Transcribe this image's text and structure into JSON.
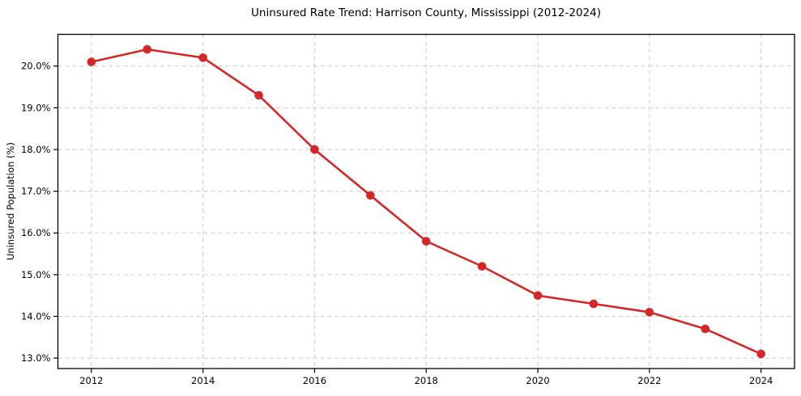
{
  "chart_data": {
    "type": "line",
    "title": "Uninsured Rate Trend: Harrison County, Mississippi (2012-2024)",
    "xlabel": "",
    "ylabel": "Uninsured Population (%)",
    "x": [
      2012,
      2013,
      2014,
      2015,
      2016,
      2017,
      2018,
      2019,
      2020,
      2021,
      2022,
      2023,
      2024
    ],
    "series": [
      {
        "name": "Uninsured rate",
        "values": [
          20.1,
          20.4,
          20.2,
          19.3,
          18.0,
          16.9,
          15.8,
          15.2,
          14.5,
          14.3,
          14.1,
          13.7,
          13.1
        ]
      }
    ],
    "xlim": [
      2011.4,
      2024.6
    ],
    "ylim": [
      12.75,
      20.76
    ],
    "xticks": {
      "values": [
        2012,
        2014,
        2016,
        2018,
        2020,
        2022,
        2024
      ],
      "labels": [
        "2012",
        "2014",
        "2016",
        "2018",
        "2020",
        "2022",
        "2024"
      ]
    },
    "yticks": {
      "values": [
        13,
        14,
        15,
        16,
        17,
        18,
        19,
        20
      ],
      "labels": [
        "13.0%",
        "14.0%",
        "15.0%",
        "16.0%",
        "17.0%",
        "18.0%",
        "19.0%",
        "20.0%"
      ]
    },
    "grid": true,
    "grid_style": "dashed",
    "legend": "none",
    "colors": {
      "line": "#d62728",
      "marker": "#d62728",
      "grid": "#cbcbcb",
      "spine": "#000000",
      "text": "#000000",
      "background": "#ffffff"
    }
  }
}
